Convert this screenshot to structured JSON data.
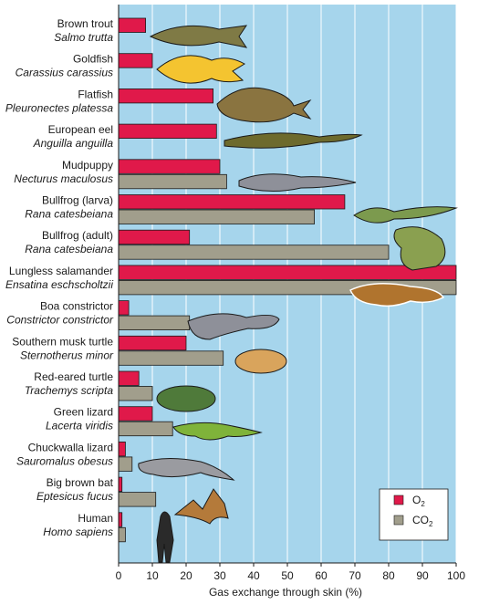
{
  "chart_data": {
    "type": "bar",
    "orientation": "horizontal",
    "title": "",
    "xlabel": "Gas exchange through skin (%)",
    "ylabel": "",
    "xlim": [
      0,
      100
    ],
    "xticks": [
      0,
      10,
      20,
      30,
      40,
      50,
      60,
      70,
      80,
      90,
      100
    ],
    "grid": true,
    "legend_position": "bottom-right",
    "categories": [
      {
        "name": "Brown trout",
        "scientific": "Salmo trutta"
      },
      {
        "name": "Goldfish",
        "scientific": "Carassius carassius"
      },
      {
        "name": "Flatfish",
        "scientific": "Pleuronectes platessa"
      },
      {
        "name": "European eel",
        "scientific": "Anguilla anguilla"
      },
      {
        "name": "Mudpuppy",
        "scientific": "Necturus maculosus"
      },
      {
        "name": "Bullfrog (larva)",
        "scientific": "Rana catesbeiana"
      },
      {
        "name": "Bullfrog (adult)",
        "scientific": "Rana catesbeiana"
      },
      {
        "name": "Lungless salamander",
        "scientific": "Ensatina eschscholtzii"
      },
      {
        "name": "Boa constrictor",
        "scientific": "Constrictor constrictor"
      },
      {
        "name": "Southern musk turtle",
        "scientific": "Sternotherus minor"
      },
      {
        "name": "Red-eared turtle",
        "scientific": "Trachemys scripta"
      },
      {
        "name": "Green lizard",
        "scientific": "Lacerta viridis"
      },
      {
        "name": "Chuckwalla lizard",
        "scientific": "Sauromalus obesus"
      },
      {
        "name": "Big brown bat",
        "scientific": "Eptesicus fucus"
      },
      {
        "name": "Human",
        "scientific": "Homo sapiens"
      }
    ],
    "series": [
      {
        "name": "O2",
        "label_main": "O",
        "label_sub": "2",
        "color": "#e0194a",
        "values": [
          8,
          10,
          28,
          29,
          30,
          67,
          21,
          100,
          3,
          20,
          6,
          10,
          2,
          1,
          1
        ]
      },
      {
        "name": "CO2",
        "label_main": "CO",
        "label_sub": "2",
        "color": "#a19e8c",
        "values": [
          null,
          null,
          null,
          null,
          32,
          58,
          80,
          100,
          21,
          31,
          10,
          16,
          4,
          11,
          2
        ]
      }
    ],
    "colors": {
      "background": "#a6d5ec",
      "grid": "#ffffff",
      "bar_stroke": "#1a1a1a",
      "text": "#1a1a1a"
    }
  }
}
